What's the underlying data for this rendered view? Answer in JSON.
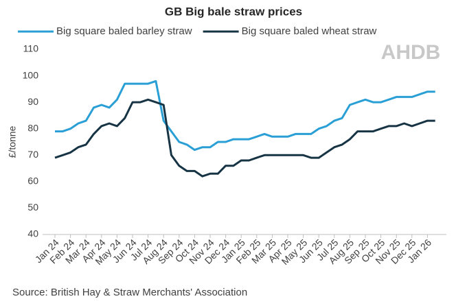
{
  "chart_data": {
    "type": "line",
    "title": "GB Big bale straw prices",
    "ylabel": "£/tonne",
    "source": "Source: British Hay & Straw Merchants' Association",
    "logo": "AHDB",
    "categories": [
      "Jan 24",
      null,
      "Feb 24",
      null,
      "Mar 24",
      null,
      "Apr 24",
      null,
      "May 24",
      null,
      "Jun 24",
      null,
      "Jul 24",
      null,
      "Aug 24",
      null,
      "Sep 24",
      null,
      "Oct 24",
      null,
      "Nov 24",
      null,
      "Dec 24",
      null,
      "Jan 25",
      null,
      "Feb 25",
      null,
      "Mar 25",
      null,
      "Apr 25",
      null,
      "May 25",
      null,
      "Jun 25",
      null,
      "Jul 25",
      null,
      "Aug 25",
      null,
      "Sep 25",
      null,
      "Oct 25",
      null,
      "Nov 25",
      null,
      "Dec 25",
      null,
      "Jan 26",
      null
    ],
    "series": [
      {
        "name": "Big square baled barley straw",
        "color": "#2a9fd6",
        "values": [
          79,
          79,
          80,
          82,
          83,
          88,
          89,
          88,
          91,
          97,
          97,
          97,
          97,
          98,
          83,
          79,
          75,
          74,
          72,
          73,
          73,
          75,
          75,
          76,
          76,
          76,
          77,
          78,
          77,
          77,
          77,
          78,
          78,
          78,
          80,
          81,
          83,
          84,
          89,
          90,
          91,
          90,
          90,
          91,
          92,
          92,
          92,
          93,
          94,
          94
        ]
      },
      {
        "name": "Big square baled wheat straw",
        "color": "#173445",
        "values": [
          69,
          70,
          71,
          73,
          74,
          78,
          81,
          82,
          81,
          84,
          90,
          90,
          91,
          90,
          89,
          70,
          66,
          64,
          64,
          62,
          63,
          63,
          66,
          66,
          68,
          68,
          69,
          70,
          70,
          70,
          70,
          70,
          70,
          69,
          69,
          71,
          73,
          74,
          76,
          79,
          79,
          79,
          80,
          81,
          81,
          82,
          81,
          82,
          83,
          83
        ]
      }
    ],
    "ylim": [
      40,
      110
    ],
    "yticks": [
      40,
      50,
      60,
      70,
      80,
      90,
      100,
      110
    ],
    "grid": false
  }
}
